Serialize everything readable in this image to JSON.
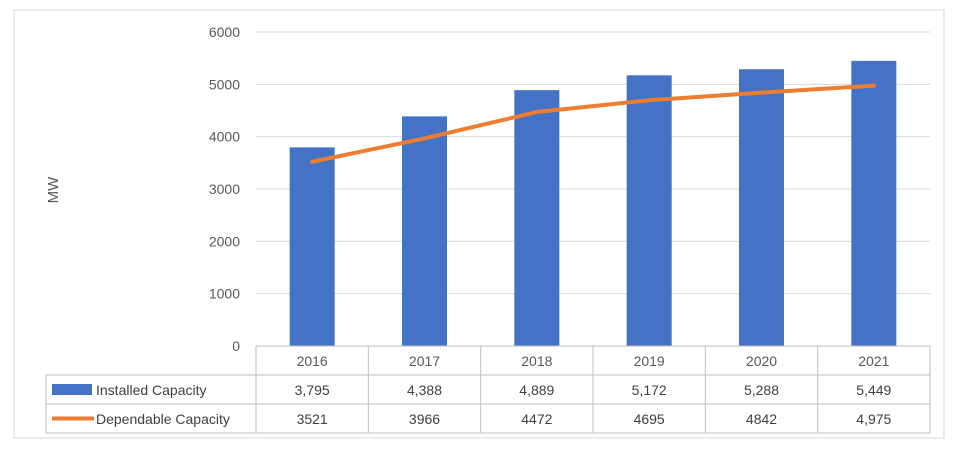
{
  "chart_data": {
    "type": "bar",
    "title": "",
    "xlabel": "",
    "ylabel": "MW",
    "ylim": [
      0,
      6000
    ],
    "yticks": [
      "0",
      "1000",
      "2000",
      "3000",
      "4000",
      "5000",
      "6000"
    ],
    "grid": true,
    "legend": "data-table",
    "categories": [
      "2016",
      "2017",
      "2018",
      "2019",
      "2020",
      "2021"
    ],
    "series": [
      {
        "name": "Installed Capacity",
        "type": "bar",
        "color": "#4472C4",
        "values": [
          3795,
          4388,
          4889,
          5172,
          5288,
          5449
        ],
        "labels": [
          "3,795",
          "4,388",
          "4,889",
          "5,172",
          "5,288",
          "5,449"
        ]
      },
      {
        "name": "Dependable Capacity",
        "type": "line",
        "color": "#ED7D31",
        "values": [
          3521,
          3966,
          4472,
          4695,
          4842,
          4975
        ],
        "labels": [
          "3521",
          "3966",
          "4472",
          "4695",
          "4842",
          "4,975"
        ]
      }
    ]
  }
}
